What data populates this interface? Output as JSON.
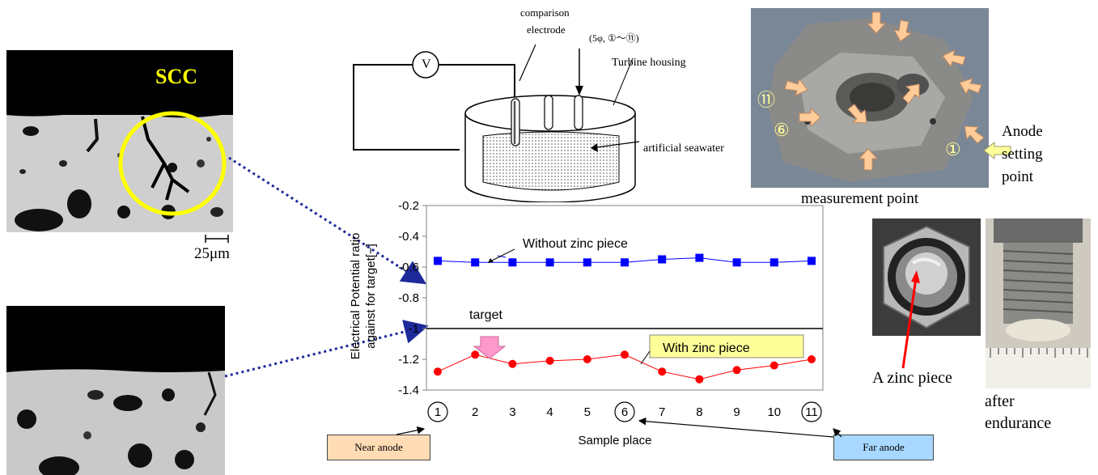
{
  "micro_top": {
    "label": "SCC",
    "scale_label": "25μm"
  },
  "schematic": {
    "comparison_label_1": "comparison",
    "comparison_label_2": "electrode",
    "points_label": "(5φ, ①～⑪)",
    "voltmeter": "V",
    "housing_label": "Turbine housing",
    "seawater_label": "artificial seawater"
  },
  "housing_photo": {
    "pt1": "①",
    "pt6": "⑥",
    "pt11": "⑪",
    "anode_label_1": "Anode",
    "anode_label_2": "setting",
    "anode_label_3": "point",
    "measurement_label": "measurement point"
  },
  "zinc_photos": {
    "zinc_label": "A zinc piece",
    "after_label_1": "after",
    "after_label_2": "endurance"
  },
  "chart_data": {
    "type": "line",
    "x": [
      1,
      2,
      3,
      4,
      5,
      6,
      7,
      8,
      9,
      10,
      11
    ],
    "xlabel": "Sample place",
    "ylabel_line1": "Electrical Potential ratio",
    "ylabel_line2": "against for target[−]",
    "ylim": [
      -1.4,
      -0.2
    ],
    "yticks": [
      "-0.2",
      "-0.4",
      "-0.6",
      "-0.8",
      "-1",
      "-1.2",
      "-1.4"
    ],
    "ytick_values": [
      -0.2,
      -0.4,
      -0.6,
      -0.8,
      -1.0,
      -1.2,
      -1.4
    ],
    "xticks": [
      "1",
      "2",
      "3",
      "4",
      "5",
      "6",
      "7",
      "8",
      "9",
      "10",
      "11"
    ],
    "circled_ticks": [
      1,
      6,
      11
    ],
    "target": {
      "value": -1.0,
      "label": "target"
    },
    "series": [
      {
        "name": "Without zinc piece",
        "color": "#0000ff",
        "marker": "square",
        "values": [
          -0.56,
          -0.57,
          -0.57,
          -0.57,
          -0.57,
          -0.57,
          -0.55,
          -0.54,
          -0.57,
          -0.57,
          -0.56
        ]
      },
      {
        "name": "With zinc piece",
        "color": "#ff0000",
        "marker": "circle",
        "values": [
          -1.28,
          -1.17,
          -1.23,
          -1.21,
          -1.2,
          -1.17,
          -1.28,
          -1.33,
          -1.27,
          -1.24,
          -1.2
        ]
      }
    ],
    "grid": false,
    "legend": "annotations"
  },
  "notes": {
    "near_anode": "Near anode",
    "far_anode": "Far anode"
  },
  "colors": {
    "scc_yellow": "#ffff00",
    "note_orange": "#ffdcb4",
    "note_blue": "#a8d8ff",
    "callout_yellow": "#ffff99",
    "arrow_navy": "#1e2a9a",
    "pink_arrow": "#ff99cc"
  }
}
